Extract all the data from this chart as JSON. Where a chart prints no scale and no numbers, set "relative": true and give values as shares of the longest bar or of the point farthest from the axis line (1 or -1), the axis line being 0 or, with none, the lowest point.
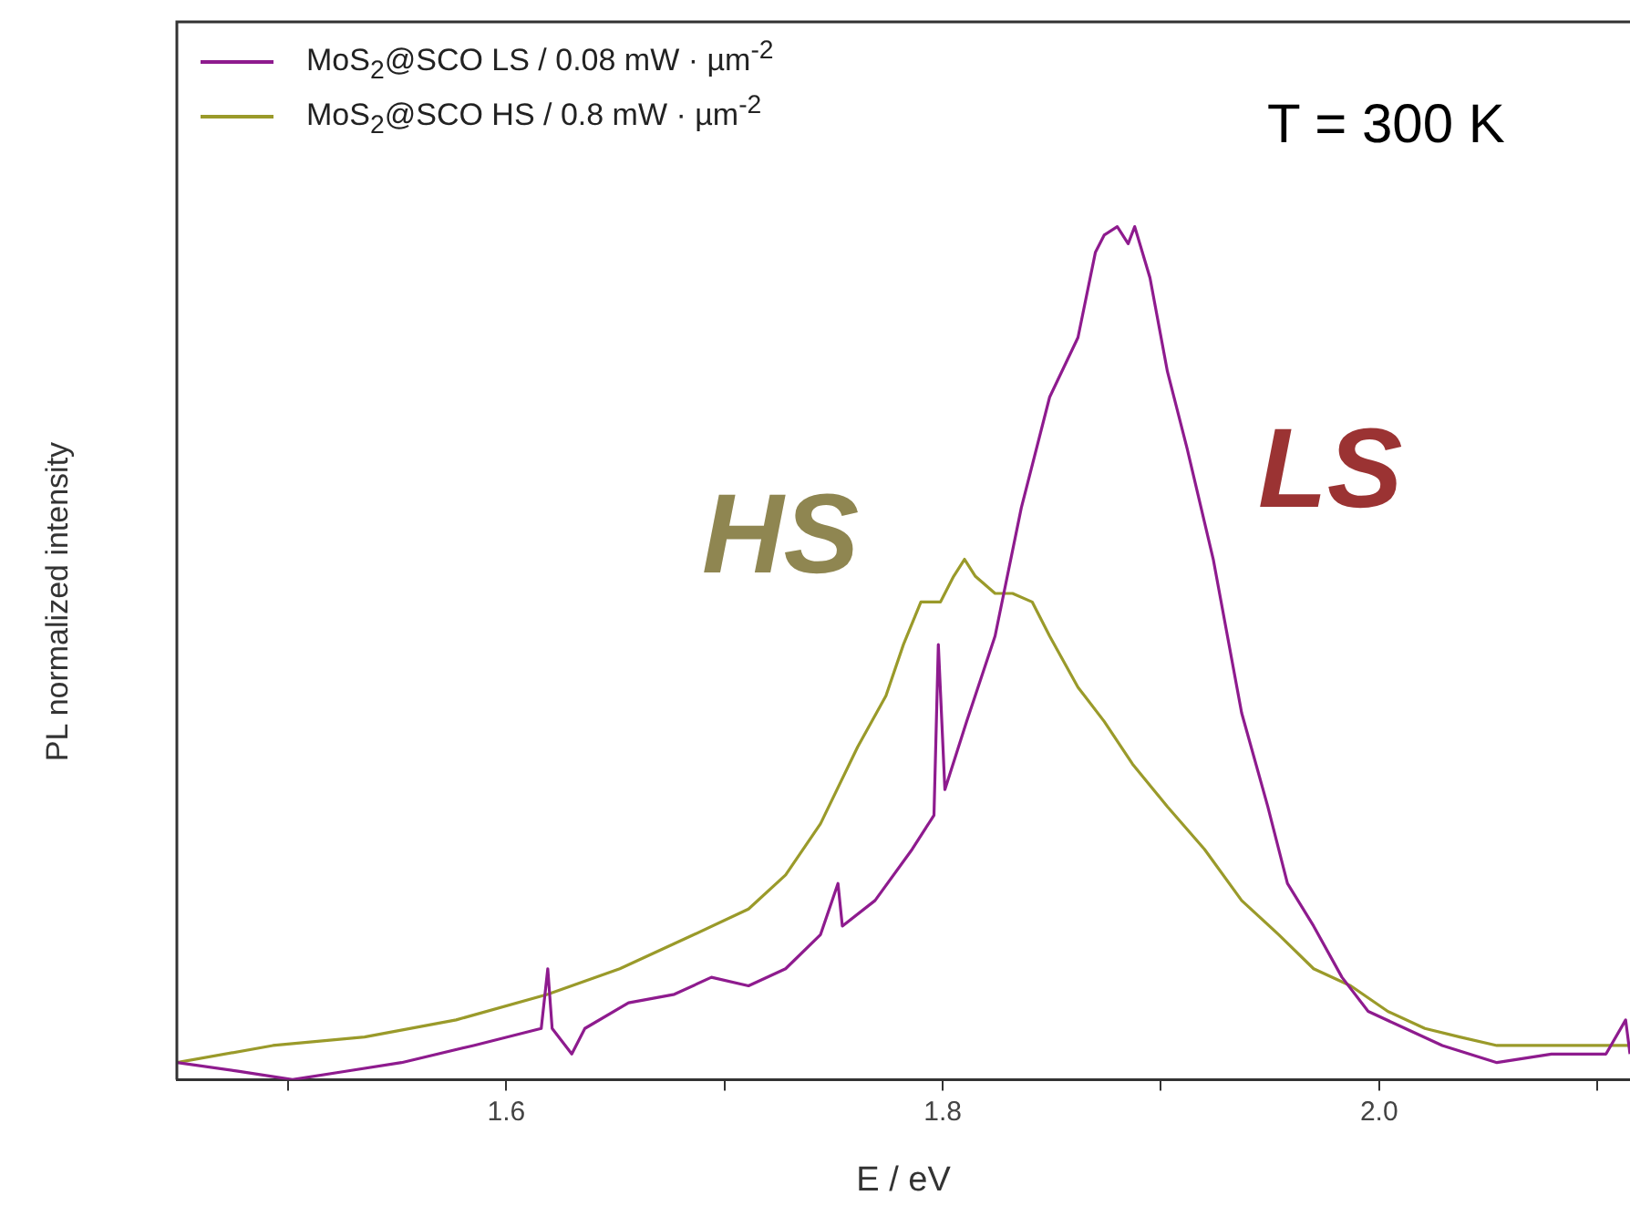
{
  "chart_data": {
    "type": "line",
    "xlabel": "E / eV",
    "ylabel": "PL normalized intensity",
    "relative": true,
    "grid": false,
    "legend": "top left",
    "marker": "none",
    "line_style": "solid",
    "xlim": [
      1.449,
      2.115
    ],
    "xticks": [
      {
        "value": 1.5,
        "label": null
      },
      1.6,
      {
        "value": 1.7,
        "label": null
      },
      1.8,
      {
        "value": 1.9,
        "label": null
      },
      {
        "value": 2,
        "label": "2.0"
      },
      {
        "value": 2.1,
        "label": null
      }
    ],
    "annotations": [
      "T = 300 K",
      "HS",
      "LS"
    ],
    "series": [
      {
        "name": "MoS$_{2}$@SCO  LS / 0.08 mW · µm$^{-2}$",
        "color": "#8e1b8e",
        "x": [
          1.449,
          1.477,
          1.502,
          1.527,
          1.552,
          1.585,
          1.616,
          1.619,
          1.621,
          1.63,
          1.636,
          1.656,
          1.677,
          1.694,
          1.711,
          1.728,
          1.744,
          1.752,
          1.754,
          1.769,
          1.786,
          1.796,
          1.798,
          1.801,
          1.811,
          1.824,
          1.836,
          1.849,
          1.862,
          1.87,
          1.874,
          1.88,
          1.885,
          1.888,
          1.895,
          1.903,
          1.912,
          1.924,
          1.937,
          1.949,
          1.958,
          1.97,
          1.983,
          1.995,
          2.012,
          2.029,
          2.054,
          2.079,
          2.104,
          2.113,
          2.115
        ],
        "values": [
          0.02,
          0.01,
          0.0,
          0.01,
          0.02,
          0.04,
          0.06,
          0.13,
          0.06,
          0.03,
          0.06,
          0.09,
          0.1,
          0.12,
          0.11,
          0.13,
          0.17,
          0.23,
          0.18,
          0.21,
          0.27,
          0.31,
          0.51,
          0.34,
          0.42,
          0.52,
          0.67,
          0.8,
          0.87,
          0.97,
          0.99,
          1,
          0.98,
          1,
          0.94,
          0.83,
          0.74,
          0.61,
          0.43,
          0.32,
          0.23,
          0.18,
          0.12,
          0.08,
          0.06,
          0.04,
          0.02,
          0.03,
          0.03,
          0.07,
          0.03
        ]
      },
      {
        "name": "MoS$_{2}$@SCO  HS /  0.8 mW · µm$^{-2}$",
        "color": "#9a9a2a",
        "x": [
          1.449,
          1.493,
          1.535,
          1.577,
          1.619,
          1.652,
          1.686,
          1.711,
          1.728,
          1.744,
          1.761,
          1.774,
          1.782,
          1.79,
          1.799,
          1.805,
          1.81,
          1.815,
          1.824,
          1.832,
          1.841,
          1.849,
          1.862,
          1.874,
          1.887,
          1.903,
          1.92,
          1.937,
          1.954,
          1.97,
          1.987,
          2.004,
          2.021,
          2.037,
          2.054,
          2.079,
          2.104,
          2.115
        ],
        "values": [
          0.02,
          0.04,
          0.05,
          0.07,
          0.1,
          0.13,
          0.17,
          0.2,
          0.24,
          0.3,
          0.39,
          0.45,
          0.51,
          0.56,
          0.56,
          0.59,
          0.61,
          0.59,
          0.57,
          0.57,
          0.56,
          0.52,
          0.46,
          0.42,
          0.37,
          0.32,
          0.27,
          0.21,
          0.17,
          0.13,
          0.11,
          0.08,
          0.06,
          0.05,
          0.04,
          0.04,
          0.04,
          0.04
        ]
      }
    ]
  }
}
